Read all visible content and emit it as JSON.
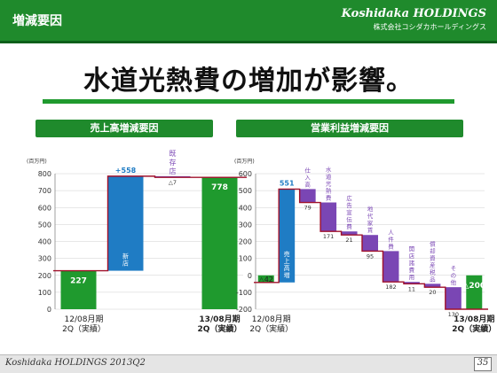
{
  "header": {
    "section_title": "増減要因",
    "logo_main": "Koshidaka HOLDINGS",
    "logo_sub": "株式会社コシダカホールディングス"
  },
  "headline": "水道光熱費の増加が影響。",
  "footer": {
    "brand": "Koshidaka HOLDINGS 2013Q2",
    "page": "35"
  },
  "colors": {
    "green": "#1f9a2e",
    "blue": "#1f7cc4",
    "purple": "#7a46b4",
    "line": "#a0102a"
  },
  "chart_data": [
    {
      "type": "bar",
      "subtype": "waterfall",
      "title": "売上高増減要因",
      "unit": "(百万円)",
      "ylim": [
        0,
        800
      ],
      "yticks": [
        0,
        100,
        200,
        300,
        400,
        500,
        600,
        700,
        800
      ],
      "bars": [
        {
          "kind": "total",
          "value": 227,
          "label": "227",
          "name_lines": []
        },
        {
          "kind": "increase",
          "value": 558,
          "label": "+558",
          "name_lines": [
            "新",
            "店"
          ]
        },
        {
          "kind": "decrease",
          "value": -7,
          "label": "△7",
          "name_lines": [
            "既",
            "存",
            "店"
          ]
        },
        {
          "kind": "total",
          "value": 778,
          "label": "778",
          "name_lines": []
        }
      ],
      "xlabels": [
        [
          "12/08月期",
          "2Q（実績）"
        ],
        [
          "13/08月期",
          "2Q（実績）"
        ]
      ]
    },
    {
      "type": "bar",
      "subtype": "waterfall",
      "title": "営業利益増減要因",
      "unit": "(百万円)",
      "ylim": [
        -200,
        600
      ],
      "yticks": [
        -200,
        -100,
        0,
        100,
        200,
        300,
        400,
        500,
        600
      ],
      "bars": [
        {
          "kind": "total",
          "value": -42,
          "label": "△42",
          "name_lines": []
        },
        {
          "kind": "increase",
          "value": 551,
          "label": "551",
          "name_lines": [
            "売",
            "上",
            "高",
            "増"
          ]
        },
        {
          "kind": "decrease",
          "value": -79,
          "label": "79",
          "name_lines": [
            "仕",
            "入",
            "高"
          ]
        },
        {
          "kind": "decrease",
          "value": -171,
          "label": "171",
          "name_lines": [
            "水",
            "道",
            "光",
            "熱",
            "費"
          ]
        },
        {
          "kind": "decrease",
          "value": -21,
          "label": "21",
          "name_lines": [
            "広",
            "告",
            "宣",
            "伝",
            "費"
          ]
        },
        {
          "kind": "decrease",
          "value": -95,
          "label": "95",
          "name_lines": [
            "地",
            "代",
            "家",
            "賃"
          ]
        },
        {
          "kind": "decrease",
          "value": -182,
          "label": "182",
          "name_lines": [
            "人",
            "件",
            "費"
          ]
        },
        {
          "kind": "decrease",
          "value": -11,
          "label": "11",
          "name_lines": [
            "開",
            "店",
            "諸",
            "費",
            "用"
          ]
        },
        {
          "kind": "decrease",
          "value": -20,
          "label": "20",
          "name_lines": [
            "償",
            "却",
            "資",
            "産",
            "税",
            "品"
          ]
        },
        {
          "kind": "decrease",
          "value": -130,
          "label": "130",
          "name_lines": [
            "そ",
            "の",
            "他"
          ]
        },
        {
          "kind": "total",
          "value": -200,
          "label": "△200",
          "name_lines": []
        }
      ],
      "xlabels": [
        [
          "12/08月期",
          "2Q（実績）"
        ],
        [
          "13/08月期",
          "2Q（実績）"
        ]
      ]
    }
  ]
}
